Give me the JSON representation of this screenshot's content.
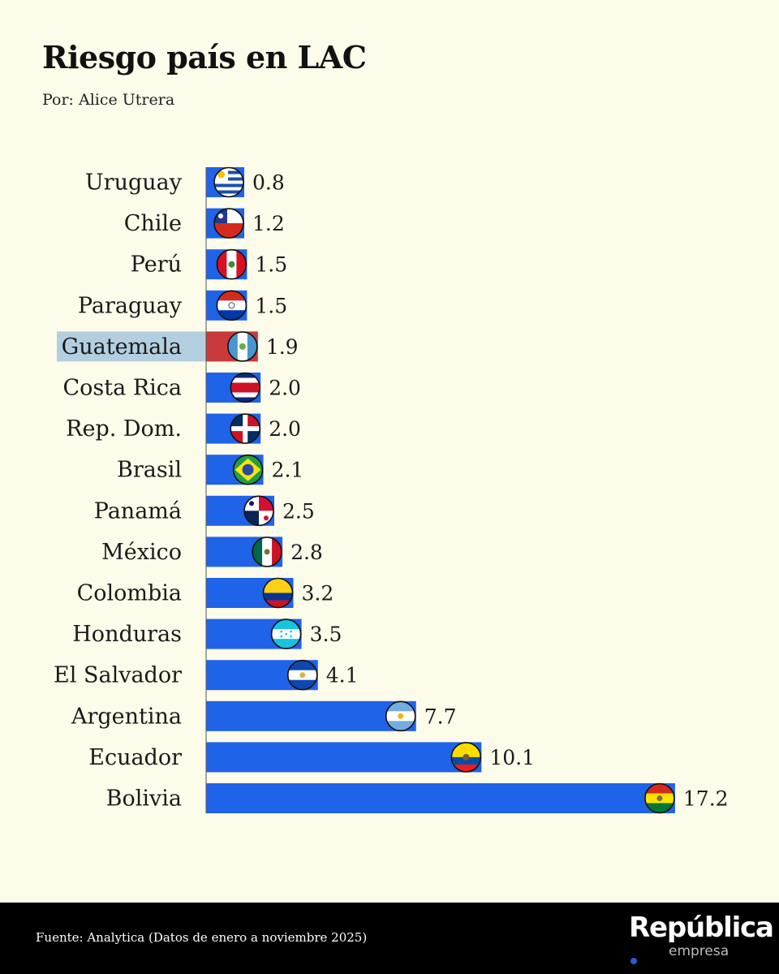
{
  "header": {
    "title": "Riesgo país en LAC",
    "byline": "Por: Alice Utrera"
  },
  "footer": {
    "source": "Fuente: Analytica (Datos de enero a noviembre 2025)",
    "brand": "República",
    "brand_sub": "empresa"
  },
  "colors": {
    "bar": "#1f63e9",
    "highlight_bar": "#c7393b",
    "highlight_label_bg": "#b3cfdf",
    "background": "#fdfbea"
  },
  "chart_data": {
    "type": "bar",
    "orientation": "horizontal",
    "categories": [
      "Uruguay",
      "Chile",
      "Perú",
      "Paraguay",
      "Guatemala",
      "Costa Rica",
      "Rep. Dom.",
      "Brasil",
      "Panamá",
      "México",
      "Colombia",
      "Honduras",
      "El Salvador",
      "Argentina",
      "Ecuador",
      "Bolivia"
    ],
    "values": [
      0.8,
      1.2,
      1.5,
      1.5,
      1.9,
      2.0,
      2.0,
      2.1,
      2.5,
      2.8,
      3.2,
      3.5,
      4.1,
      7.7,
      10.1,
      17.2
    ],
    "value_labels": [
      "0.8",
      "1.2",
      "1.5",
      "1.5",
      "1.9",
      "2.0",
      "2.0",
      "2.1",
      "2.5",
      "2.8",
      "3.2",
      "3.5",
      "4.1",
      "7.7",
      "10.1",
      "17.2"
    ],
    "highlight": "Guatemala",
    "flag_icons": [
      "uruguay-flag-icon",
      "chile-flag-icon",
      "peru-flag-icon",
      "paraguay-flag-icon",
      "guatemala-flag-icon",
      "costa-rica-flag-icon",
      "dominican-republic-flag-icon",
      "brazil-flag-icon",
      "panama-flag-icon",
      "mexico-flag-icon",
      "colombia-flag-icon",
      "honduras-flag-icon",
      "el-salvador-flag-icon",
      "argentina-flag-icon",
      "ecuador-flag-icon",
      "bolivia-flag-icon"
    ],
    "title": "Riesgo país en LAC",
    "xlabel": "",
    "ylabel": "",
    "xlim": [
      0,
      17.2
    ],
    "grid": false,
    "legend": "none"
  }
}
